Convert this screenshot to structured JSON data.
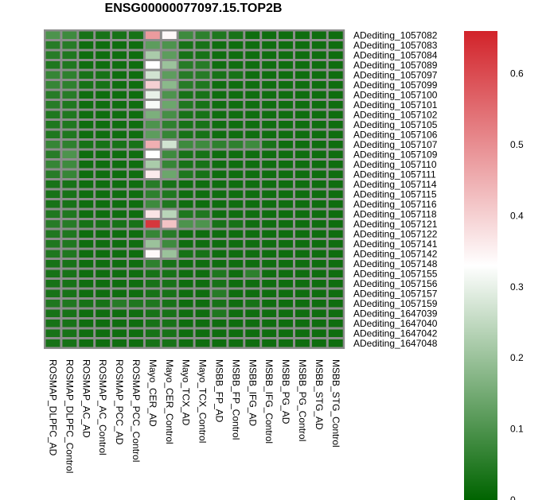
{
  "chart_data": {
    "type": "heatmap",
    "title": "ENSG00000077097.15.TOP2B",
    "columns": [
      "ROSMAP_DLPFC_AD",
      "ROSMAP_DLPFC_Control",
      "ROSMAP_AC_AD",
      "ROSMAP_AC_Control",
      "ROSMAP_PCC_AD",
      "ROSMAP_PCC_Control",
      "Mayo_CER_AD",
      "Mayo_CER_Control",
      "Mayo_TCX_AD",
      "Mayo_TCX_Control",
      "MSBB_FP_AD",
      "MSBB_FP_Control",
      "MSBB_IFG_AD",
      "MSBB_IFG_Control",
      "MSBB_PG_AD",
      "MSBB_PG_Control",
      "MSBB_STG_AD",
      "MSBB_STG_Control"
    ],
    "rows": [
      "ADediting_1057082",
      "ADediting_1057083",
      "ADediting_1057084",
      "ADediting_1057089",
      "ADediting_1057097",
      "ADediting_1057099",
      "ADediting_1057100",
      "ADediting_1057101",
      "ADediting_1057102",
      "ADediting_1057105",
      "ADediting_1057106",
      "ADediting_1057107",
      "ADediting_1057109",
      "ADediting_1057110",
      "ADediting_1057111",
      "ADediting_1057114",
      "ADediting_1057115",
      "ADediting_1057116",
      "ADediting_1057118",
      "ADediting_1057121",
      "ADediting_1057122",
      "ADediting_1057141",
      "ADediting_1057142",
      "ADediting_1057148",
      "ADediting_1057155",
      "ADediting_1057156",
      "ADediting_1057157",
      "ADediting_1057159",
      "ADediting_1647039",
      "ADediting_1647040",
      "ADediting_1647042",
      "ADediting_1647048"
    ],
    "values": [
      [
        0.1,
        0.08,
        0.03,
        0.03,
        0.03,
        0.03,
        0.48,
        0.34,
        0.08,
        0.06,
        0.04,
        0.03,
        0.02,
        0.02,
        0.02,
        0.02,
        0.02,
        0.02
      ],
      [
        0.05,
        0.05,
        0.02,
        0.02,
        0.02,
        0.02,
        0.12,
        0.1,
        0.03,
        0.03,
        0.02,
        0.02,
        0.02,
        0.02,
        0.02,
        0.02,
        0.02,
        0.02
      ],
      [
        0.05,
        0.04,
        0.02,
        0.02,
        0.02,
        0.02,
        0.22,
        0.12,
        0.03,
        0.03,
        0.02,
        0.02,
        0.02,
        0.02,
        0.02,
        0.02,
        0.02,
        0.02
      ],
      [
        0.04,
        0.04,
        0.02,
        0.02,
        0.02,
        0.02,
        0.33,
        0.2,
        0.05,
        0.05,
        0.02,
        0.02,
        0.02,
        0.02,
        0.02,
        0.02,
        0.02,
        0.02
      ],
      [
        0.07,
        0.06,
        0.03,
        0.03,
        0.02,
        0.02,
        0.27,
        0.12,
        0.05,
        0.05,
        0.03,
        0.03,
        0.02,
        0.02,
        0.02,
        0.02,
        0.02,
        0.02
      ],
      [
        0.07,
        0.06,
        0.03,
        0.03,
        0.02,
        0.02,
        0.4,
        0.18,
        0.05,
        0.04,
        0.02,
        0.02,
        0.02,
        0.02,
        0.02,
        0.02,
        0.02,
        0.02
      ],
      [
        0.05,
        0.05,
        0.02,
        0.02,
        0.02,
        0.02,
        0.3,
        0.1,
        0.03,
        0.03,
        0.02,
        0.02,
        0.02,
        0.02,
        0.02,
        0.02,
        0.02,
        0.02
      ],
      [
        0.05,
        0.04,
        0.02,
        0.02,
        0.02,
        0.02,
        0.32,
        0.14,
        0.04,
        0.03,
        0.02,
        0.02,
        0.02,
        0.02,
        0.02,
        0.02,
        0.02,
        0.02
      ],
      [
        0.04,
        0.04,
        0.02,
        0.02,
        0.02,
        0.02,
        0.16,
        0.09,
        0.03,
        0.03,
        0.02,
        0.02,
        0.02,
        0.02,
        0.02,
        0.02,
        0.02,
        0.02
      ],
      [
        0.04,
        0.04,
        0.02,
        0.02,
        0.02,
        0.02,
        0.1,
        0.06,
        0.03,
        0.03,
        0.02,
        0.02,
        0.02,
        0.02,
        0.02,
        0.02,
        0.02,
        0.02
      ],
      [
        0.04,
        0.04,
        0.02,
        0.02,
        0.02,
        0.02,
        0.12,
        0.07,
        0.03,
        0.03,
        0.02,
        0.02,
        0.02,
        0.02,
        0.02,
        0.02,
        0.02,
        0.02
      ],
      [
        0.07,
        0.06,
        0.03,
        0.03,
        0.03,
        0.03,
        0.45,
        0.27,
        0.08,
        0.08,
        0.06,
        0.06,
        0.08,
        0.03,
        0.02,
        0.02,
        0.02,
        0.02
      ],
      [
        0.05,
        0.1,
        0.02,
        0.02,
        0.02,
        0.02,
        0.33,
        0.08,
        0.03,
        0.03,
        0.02,
        0.02,
        0.02,
        0.02,
        0.02,
        0.02,
        0.02,
        0.02
      ],
      [
        0.07,
        0.08,
        0.02,
        0.02,
        0.02,
        0.02,
        0.22,
        0.07,
        0.03,
        0.03,
        0.02,
        0.02,
        0.02,
        0.02,
        0.02,
        0.02,
        0.02,
        0.02
      ],
      [
        0.05,
        0.07,
        0.02,
        0.02,
        0.02,
        0.02,
        0.36,
        0.14,
        0.04,
        0.03,
        0.02,
        0.02,
        0.02,
        0.02,
        0.02,
        0.02,
        0.02,
        0.02
      ],
      [
        0.03,
        0.03,
        0.02,
        0.02,
        0.02,
        0.02,
        0.05,
        0.03,
        0.02,
        0.02,
        0.02,
        0.02,
        0.02,
        0.02,
        0.02,
        0.02,
        0.02,
        0.02
      ],
      [
        0.03,
        0.03,
        0.02,
        0.02,
        0.02,
        0.02,
        0.06,
        0.04,
        0.02,
        0.02,
        0.02,
        0.02,
        0.02,
        0.02,
        0.02,
        0.02,
        0.02,
        0.02
      ],
      [
        0.03,
        0.03,
        0.02,
        0.02,
        0.02,
        0.02,
        0.08,
        0.04,
        0.02,
        0.02,
        0.02,
        0.02,
        0.02,
        0.02,
        0.02,
        0.02,
        0.02,
        0.02
      ],
      [
        0.04,
        0.04,
        0.02,
        0.02,
        0.02,
        0.02,
        0.37,
        0.24,
        0.04,
        0.04,
        0.02,
        0.02,
        0.02,
        0.02,
        0.02,
        0.02,
        0.02,
        0.02
      ],
      [
        0.05,
        0.05,
        0.03,
        0.03,
        0.03,
        0.03,
        0.63,
        0.42,
        0.1,
        0.1,
        0.03,
        0.03,
        0.02,
        0.02,
        0.02,
        0.02,
        0.02,
        0.02
      ],
      [
        0.04,
        0.04,
        0.02,
        0.02,
        0.02,
        0.02,
        0.07,
        0.05,
        0.02,
        0.02,
        0.02,
        0.02,
        0.02,
        0.02,
        0.02,
        0.02,
        0.02,
        0.02
      ],
      [
        0.04,
        0.04,
        0.02,
        0.02,
        0.02,
        0.02,
        0.2,
        0.08,
        0.02,
        0.02,
        0.02,
        0.02,
        0.02,
        0.02,
        0.02,
        0.02,
        0.02,
        0.02
      ],
      [
        0.04,
        0.04,
        0.02,
        0.02,
        0.02,
        0.02,
        0.34,
        0.2,
        0.03,
        0.03,
        0.02,
        0.02,
        0.02,
        0.02,
        0.02,
        0.02,
        0.02,
        0.02
      ],
      [
        0.03,
        0.03,
        0.02,
        0.02,
        0.02,
        0.02,
        0.06,
        0.03,
        0.02,
        0.02,
        0.02,
        0.02,
        0.02,
        0.02,
        0.02,
        0.02,
        0.02,
        0.02
      ],
      [
        0.03,
        0.03,
        0.02,
        0.02,
        0.02,
        0.02,
        0.03,
        0.03,
        0.02,
        0.02,
        0.04,
        0.02,
        0.06,
        0.02,
        0.02,
        0.02,
        0.02,
        0.02
      ],
      [
        0.03,
        0.03,
        0.02,
        0.02,
        0.02,
        0.02,
        0.03,
        0.03,
        0.02,
        0.02,
        0.03,
        0.02,
        0.02,
        0.02,
        0.02,
        0.02,
        0.02,
        0.02
      ],
      [
        0.03,
        0.03,
        0.02,
        0.02,
        0.02,
        0.02,
        0.03,
        0.03,
        0.02,
        0.02,
        0.05,
        0.02,
        0.02,
        0.02,
        0.02,
        0.02,
        0.02,
        0.02
      ],
      [
        0.04,
        0.04,
        0.03,
        0.03,
        0.05,
        0.04,
        0.04,
        0.03,
        0.02,
        0.02,
        0.03,
        0.02,
        0.03,
        0.02,
        0.02,
        0.02,
        0.02,
        0.02
      ],
      [
        0.03,
        0.03,
        0.02,
        0.02,
        0.02,
        0.02,
        0.03,
        0.03,
        0.02,
        0.02,
        0.04,
        0.02,
        0.02,
        0.02,
        0.02,
        0.02,
        0.02,
        0.02
      ],
      [
        0.03,
        0.03,
        0.02,
        0.02,
        0.02,
        0.02,
        0.03,
        0.03,
        0.02,
        0.02,
        0.02,
        0.02,
        0.02,
        0.02,
        0.02,
        0.02,
        0.02,
        0.02
      ],
      [
        0.03,
        0.03,
        0.02,
        0.02,
        0.02,
        0.02,
        0.03,
        0.03,
        0.02,
        0.02,
        0.02,
        0.02,
        0.02,
        0.02,
        0.02,
        0.02,
        0.02,
        0.02
      ],
      [
        0.03,
        0.03,
        0.02,
        0.02,
        0.02,
        0.02,
        0.03,
        0.03,
        0.02,
        0.02,
        0.02,
        0.02,
        0.02,
        0.02,
        0.02,
        0.02,
        0.02,
        0.02
      ]
    ],
    "color_scale": {
      "min": 0,
      "mid": 0.33,
      "max": 0.66,
      "low_color": "#006400",
      "mid_color": "#ffffff",
      "high_color": "#d2232a"
    },
    "colorbar_ticks": [
      {
        "value": 0,
        "label": "0"
      },
      {
        "value": 0.1,
        "label": "0.1"
      },
      {
        "value": 0.2,
        "label": "0.2"
      },
      {
        "value": 0.3,
        "label": "0.3"
      },
      {
        "value": 0.4,
        "label": "0.4"
      },
      {
        "value": 0.5,
        "label": "0.5"
      },
      {
        "value": 0.6,
        "label": "0.6"
      }
    ],
    "cell_border_color": "#8c8c8c"
  }
}
